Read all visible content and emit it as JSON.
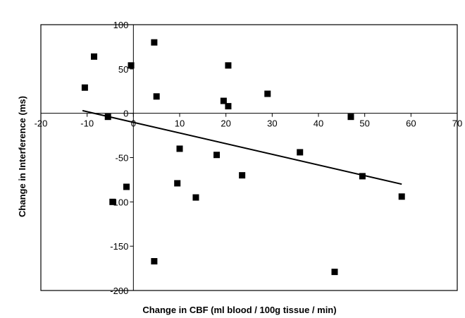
{
  "chart_data": {
    "type": "scatter",
    "title": "",
    "xlabel": "Change in CBF (ml blood / 100g tissue / min)",
    "ylabel": "Change in Interference (ms)",
    "xlim": [
      -20,
      70
    ],
    "ylim": [
      -200,
      100
    ],
    "x_ticks": [
      -20,
      -10,
      0,
      10,
      20,
      30,
      40,
      50,
      60,
      70
    ],
    "y_ticks": [
      100,
      50,
      0,
      -50,
      -100,
      -150,
      -200
    ],
    "x_tick_labels": [
      "-20",
      "-10",
      "0",
      "10",
      "20",
      "30",
      "40",
      "50",
      "60",
      "70"
    ],
    "y_tick_labels": [
      "100",
      "50",
      "0",
      "-50",
      "-100",
      "-150",
      "-200"
    ],
    "grid": false,
    "legend": "none",
    "marker": "square",
    "marker_color": "#000000",
    "points": [
      {
        "x": -8.5,
        "y": 64
      },
      {
        "x": 4.5,
        "y": 80
      },
      {
        "x": -10.5,
        "y": 29
      },
      {
        "x": -0.5,
        "y": 54
      },
      {
        "x": 5,
        "y": 19
      },
      {
        "x": 20.5,
        "y": 54
      },
      {
        "x": 19.5,
        "y": 14
      },
      {
        "x": 20.5,
        "y": 8
      },
      {
        "x": 29,
        "y": 22
      },
      {
        "x": -5.5,
        "y": -4
      },
      {
        "x": 47,
        "y": -4
      },
      {
        "x": 10,
        "y": -40
      },
      {
        "x": 18,
        "y": -47
      },
      {
        "x": 36,
        "y": -44
      },
      {
        "x": -1.5,
        "y": -83
      },
      {
        "x": -4.5,
        "y": -100
      },
      {
        "x": 9.5,
        "y": -79
      },
      {
        "x": 13.5,
        "y": -95
      },
      {
        "x": 23.5,
        "y": -70
      },
      {
        "x": 49.5,
        "y": -71
      },
      {
        "x": 58,
        "y": -94
      },
      {
        "x": 4.5,
        "y": -167
      },
      {
        "x": 43.5,
        "y": -179
      }
    ],
    "trendline": {
      "x": [
        -11,
        58
      ],
      "y": [
        3,
        -80
      ]
    }
  }
}
